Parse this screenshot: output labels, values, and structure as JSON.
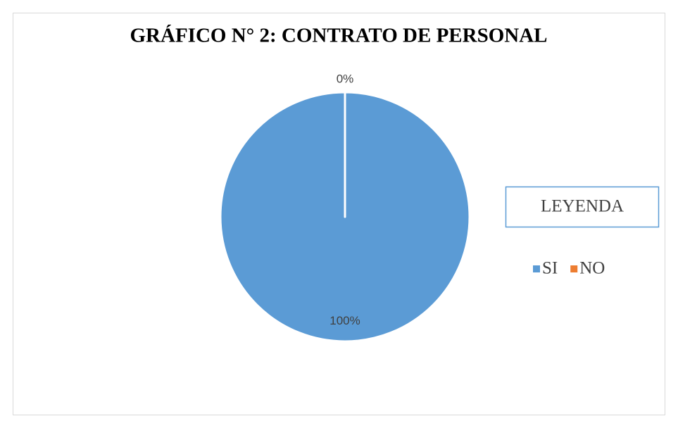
{
  "chart_data": {
    "type": "pie",
    "title": "GRÁFICO N° 2: CONTRATO DE PERSONAL",
    "categories": [
      "SI",
      "NO"
    ],
    "values": [
      100,
      0
    ],
    "value_labels": [
      "100%",
      "0%"
    ],
    "colors": [
      "#5b9bd5",
      "#ed7d31"
    ],
    "legend_title": "LEYENDA",
    "legend": "right"
  }
}
